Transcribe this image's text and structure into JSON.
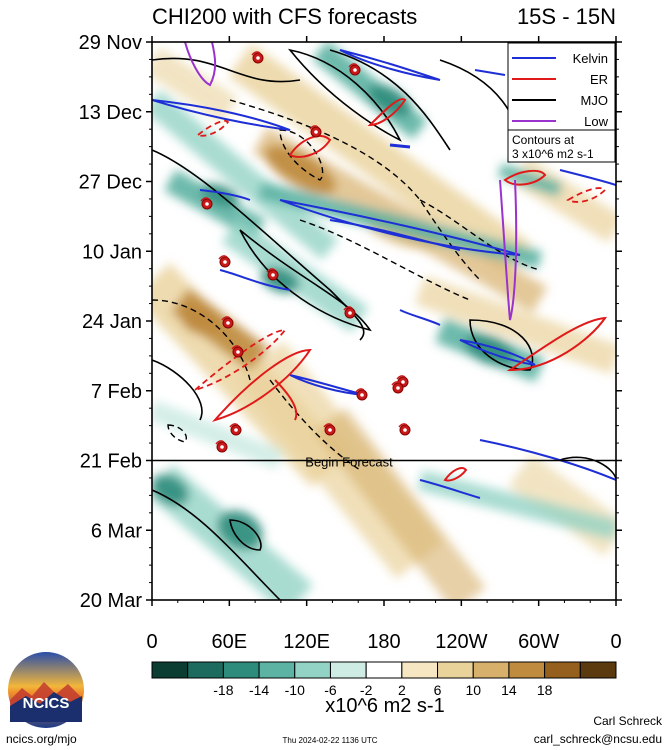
{
  "title_left": "CHI200 with CFS forecasts",
  "title_right": "15S - 15N",
  "y_ticks": [
    "29 Nov",
    "13 Dec",
    "27 Dec",
    "10 Jan",
    "24 Jan",
    "7 Feb",
    "21 Feb",
    "6 Mar",
    "20 Mar"
  ],
  "x_ticks": [
    "0",
    "60E",
    "120E",
    "180",
    "120W",
    "60W",
    "0"
  ],
  "forecast_label": "Begin Forecast",
  "legend": {
    "items": [
      {
        "label": "Kelvin",
        "color": "#1f2fd6"
      },
      {
        "label": "ER",
        "color": "#e01a1a"
      },
      {
        "label": "MJO",
        "color": "#000000"
      },
      {
        "label": "Low",
        "color": "#9a32cd"
      }
    ],
    "note_line1": "Contours at",
    "note_line2": "3 x10^6 m2 s-1"
  },
  "colorbar": {
    "ticks": [
      "-18",
      "-14",
      "-10",
      "-6",
      "-2",
      "2",
      "6",
      "10",
      "14",
      "18"
    ],
    "colors": [
      "#0b3d33",
      "#1d6b5e",
      "#2e8c7c",
      "#5cb3a3",
      "#93d3c5",
      "#cfece4",
      "#ffffff",
      "#f6e6c2",
      "#ead29b",
      "#d7b06c",
      "#bf8b3f",
      "#955f1d",
      "#5b3a10"
    ],
    "units": "x10^6 m2 s-1"
  },
  "footer": {
    "org_url": "ncics.org/mjo",
    "logo_text": "NCICS",
    "timestamp": "Thu 2024-02-22 1136 UTC",
    "author": "Carl Schreck",
    "email": "carl_schreck@ncsu.edu"
  },
  "chart_data": {
    "type": "heatmap",
    "title": "CHI200 with CFS forecasts",
    "subtitle": "15S - 15N",
    "x_axis": "longitude",
    "y_axis": "date",
    "xlim": [
      0,
      360
    ],
    "ylim": [
      "2023-11-29",
      "2024-03-20"
    ],
    "forecast_start": "2024-02-21",
    "contour_interval": 3,
    "contour_units": "x10^6 m2 s-1",
    "shading_levels": [
      -18,
      -14,
      -10,
      -6,
      -2,
      2,
      6,
      10,
      14,
      18
    ],
    "series": [
      {
        "name": "Kelvin",
        "color": "#1f2fd6"
      },
      {
        "name": "ER",
        "color": "#e01a1a"
      },
      {
        "name": "MJO",
        "color": "#000000"
      },
      {
        "name": "Low",
        "color": "#9a32cd"
      }
    ],
    "legend_position": "top-right"
  }
}
